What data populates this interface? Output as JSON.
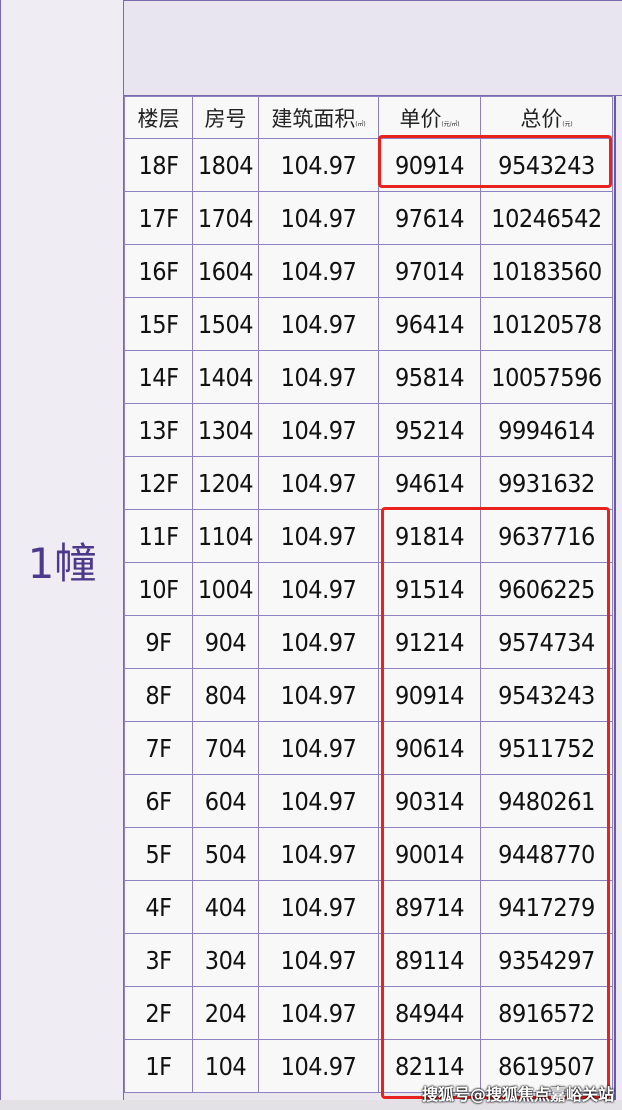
{
  "building": "1幢",
  "headers": [
    {
      "label": "楼层",
      "unit": ""
    },
    {
      "label": "房号",
      "unit": ""
    },
    {
      "label": "建筑面积",
      "unit": "(㎡)"
    },
    {
      "label": "单价",
      "unit": "(元/㎡)"
    },
    {
      "label": "总价",
      "unit": "(元)"
    }
  ],
  "rows": [
    [
      "18F",
      "1804",
      "104.97",
      "90914",
      "9543243"
    ],
    [
      "17F",
      "1704",
      "104.97",
      "97614",
      "10246542"
    ],
    [
      "16F",
      "1604",
      "104.97",
      "97014",
      "10183560"
    ],
    [
      "15F",
      "1504",
      "104.97",
      "96414",
      "10120578"
    ],
    [
      "14F",
      "1404",
      "104.97",
      "95814",
      "10057596"
    ],
    [
      "13F",
      "1304",
      "104.97",
      "95214",
      "9994614"
    ],
    [
      "12F",
      "1204",
      "104.97",
      "94614",
      "9931632"
    ],
    [
      "11F",
      "1104",
      "104.97",
      "91814",
      "9637716"
    ],
    [
      "10F",
      "1004",
      "104.97",
      "91514",
      "9606225"
    ],
    [
      "9F",
      "904",
      "104.97",
      "91214",
      "9574734"
    ],
    [
      "8F",
      "804",
      "104.97",
      "90914",
      "9543243"
    ],
    [
      "7F",
      "704",
      "104.97",
      "90614",
      "9511752"
    ],
    [
      "6F",
      "604",
      "104.97",
      "90314",
      "9480261"
    ],
    [
      "5F",
      "504",
      "104.97",
      "90014",
      "9448770"
    ],
    [
      "4F",
      "404",
      "104.97",
      "89714",
      "9417279"
    ],
    [
      "3F",
      "304",
      "104.97",
      "89114",
      "9354297"
    ],
    [
      "2F",
      "204",
      "104.97",
      "84944",
      "8916572"
    ],
    [
      "1F",
      "104",
      "104.97",
      "82114",
      "8619507"
    ]
  ],
  "highlight_color": "#e8231e",
  "watermark": "搜狐号@搜狐焦点嘉峪关站"
}
